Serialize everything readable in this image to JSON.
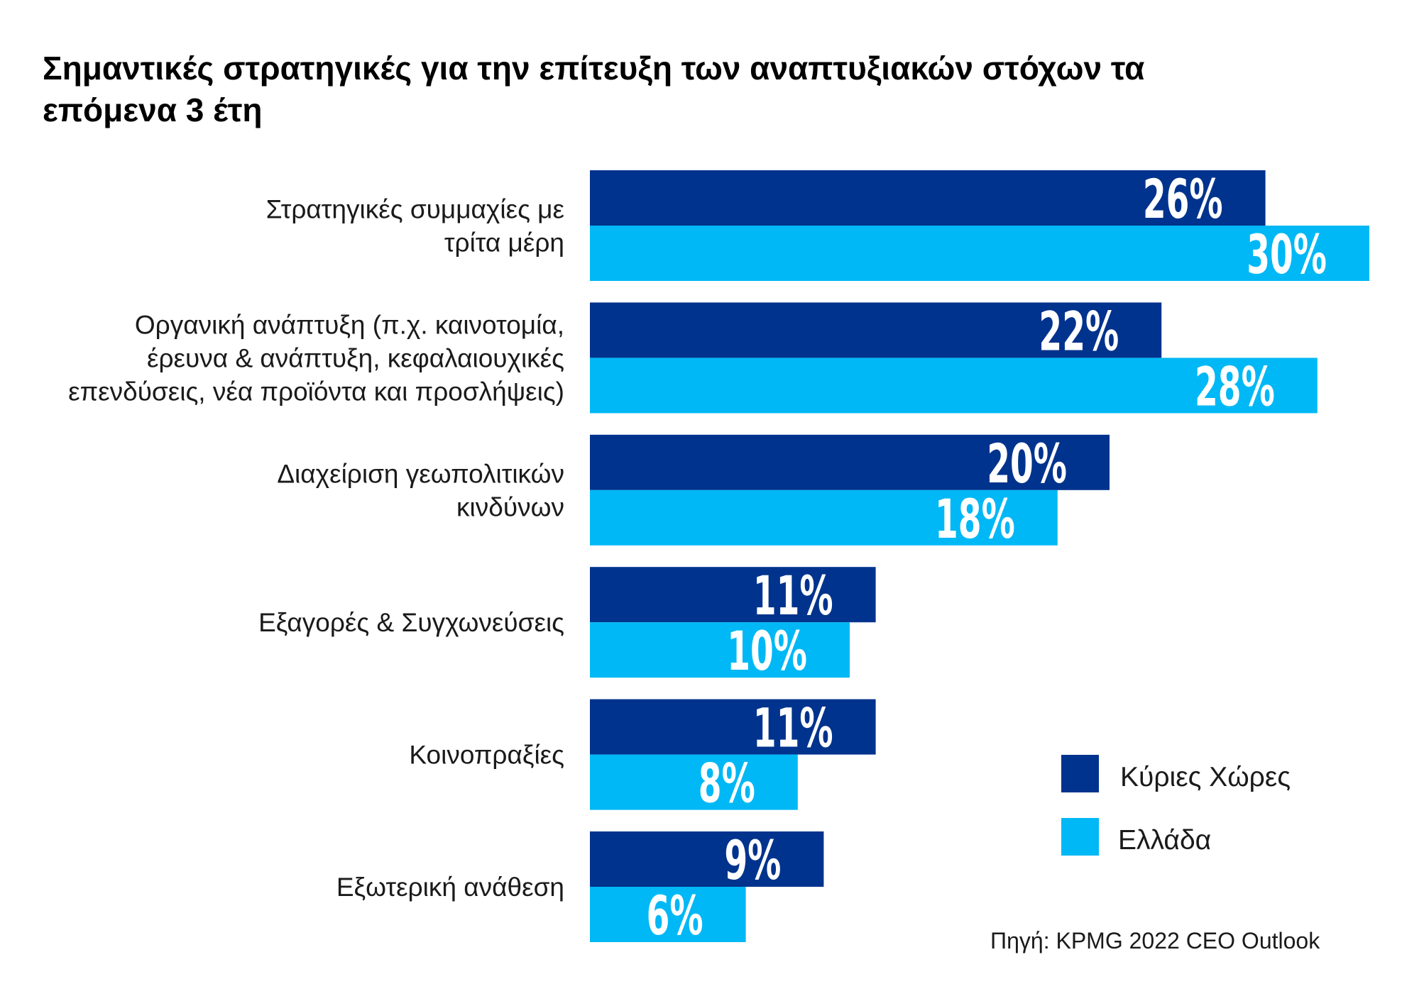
{
  "chart_data": {
    "type": "bar",
    "orientation": "horizontal",
    "title": "Σημαντικές στρατηγικές για την επίτευξη των αναπτυξιακών στόχων τα επόμενα 3 έτη",
    "title_lines": [
      "Σημαντικές στρατηγικές για την επίτευξη των αναπτυξιακών στόχων τα",
      "επόμενα 3 έτη"
    ],
    "xlabel": "",
    "ylabel": "",
    "unit": "%",
    "xlim": [
      0,
      30
    ],
    "grid": false,
    "legend_position": "bottom-right",
    "categories": [
      "Στρατηγικές συμμαχίες με τρίτα μέρη",
      "Οργανική ανάπτυξη (π.χ. καινοτομία, έρευνα & ανάπτυξη, κεφαλαιουχικές επενδύσεις, νέα προϊόντα και προσλήψεις)",
      "Διαχείριση γεωπολιτικών κινδύνων",
      "Εξαγορές & Συγχωνεύσεις",
      "Κοινοπραξίες",
      "Εξωτερική ανάθεση"
    ],
    "category_lines": [
      [
        "Στρατηγικές συμμαχίες με",
        "τρίτα μέρη"
      ],
      [
        "Οργανική ανάπτυξη (π.χ. καινοτομία,",
        "έρευνα & ανάπτυξη, κεφαλαιουχικές",
        "επενδύσεις, νέα προϊόντα και προσλήψεις)"
      ],
      [
        "Διαχείριση γεωπολιτικών",
        "κινδύνων"
      ],
      [
        "Εξαγορές & Συγχωνεύσεις"
      ],
      [
        "Κοινοπραξίες"
      ],
      [
        "Εξωτερική ανάθεση"
      ]
    ],
    "series": [
      {
        "name": "Κύριες Χώρες",
        "color": "#00338D",
        "values": [
          26,
          22,
          20,
          11,
          11,
          9
        ]
      },
      {
        "name": "Ελλάδα",
        "color": "#00B8F5",
        "values": [
          30,
          28,
          18,
          10,
          8,
          6
        ]
      }
    ],
    "data_labels": [
      [
        "26%",
        "22%",
        "20%",
        "11%",
        "11%",
        "9%"
      ],
      [
        "30%",
        "28%",
        "18%",
        "10%",
        "8%",
        "6%"
      ]
    ],
    "source": "Πηγή: KPMG 2022 CEO Outlook"
  }
}
